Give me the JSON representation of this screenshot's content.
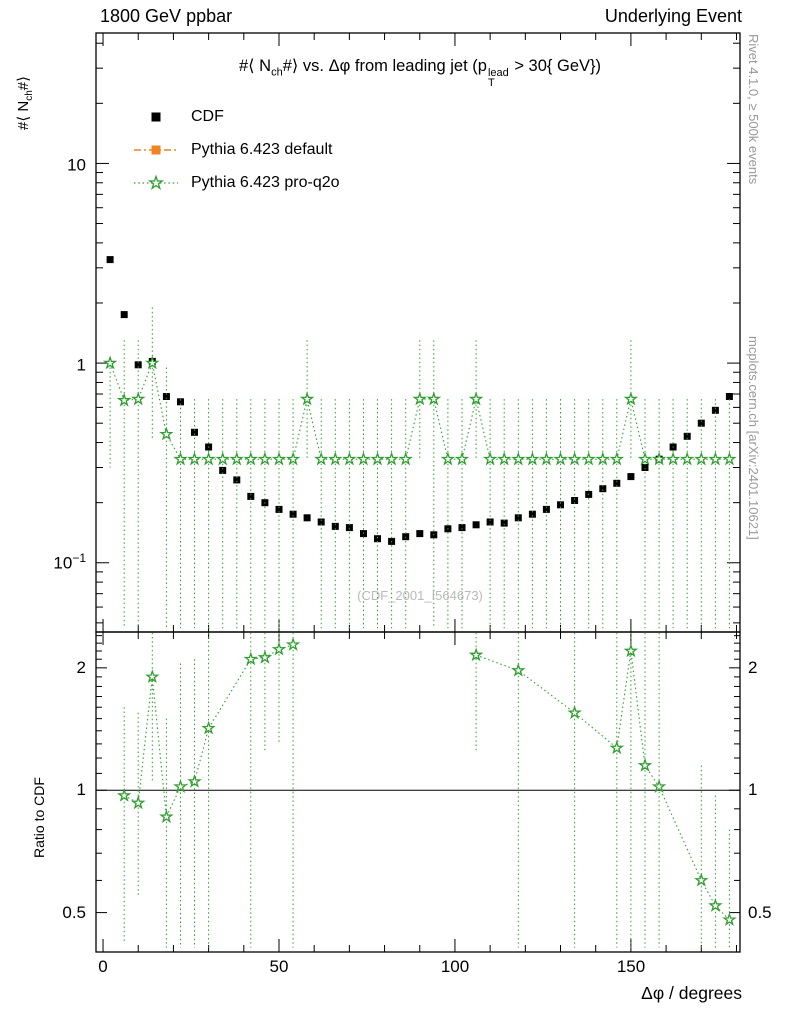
{
  "header": {
    "left": "1800 GeV ppbar",
    "right": "Underlying Event"
  },
  "side_texts": {
    "top_right": "Rivet 4.1.0, ≥ 500k events",
    "bottom_right": "mcplots.cern.ch [arXiv:2401.10621]"
  },
  "watermark": "(CDF_2001_I564673)",
  "title": {
    "part1": "#⟨ N",
    "sub1": "ch",
    "part2": "#⟩ vs. Δφ from leading jet  (p",
    "p_sup": "lead",
    "p_sub": "T",
    "part3": " > 30{ GeV})"
  },
  "axes": {
    "y_label": {
      "part1": "#⟨ N",
      "sub": "ch",
      "part2": "#⟩"
    },
    "ratio_label": "Ratio to CDF",
    "x_label": "Δφ / degrees",
    "main_y_ticks": [
      {
        "base": "10",
        "exp": "",
        "value": 10
      },
      {
        "base": "1",
        "exp": "",
        "value": 1
      },
      {
        "base": "10",
        "exp": "−1",
        "value": 0.1
      }
    ],
    "ratio_y_ticks": [
      {
        "label": "2",
        "value": 2
      },
      {
        "label": "1",
        "value": 1
      },
      {
        "label": "0.5",
        "value": 0.5
      }
    ],
    "x_ticks": [
      {
        "label": "0",
        "value": 0
      },
      {
        "label": "50",
        "value": 50
      },
      {
        "label": "100",
        "value": 100
      },
      {
        "label": "150",
        "value": 150
      }
    ]
  },
  "legend": [
    {
      "label": "CDF",
      "marker": "filled-square",
      "line": "none",
      "color": "#000000"
    },
    {
      "label": "Pythia 6.423 default",
      "marker": "filled-square",
      "line": "dashdot",
      "color": "#f28322"
    },
    {
      "label": "Pythia 6.423 pro-q2o",
      "marker": "open-star",
      "line": "dotted",
      "color": "#2f9e2f"
    }
  ],
  "chart_data": [
    {
      "type": "scatter",
      "panel": "main",
      "title": "#<N_ch#> vs. Dphi from leading jet (pT^lead > 30 GeV)",
      "xlabel": "Δφ / degrees",
      "ylabel": "#<N_ch#>",
      "xlim": [
        -2,
        181
      ],
      "ylim": [
        0.045,
        45
      ],
      "yscale": "log",
      "grid": false,
      "legend_position": "top-left",
      "series": [
        {
          "name": "CDF",
          "marker": "filled-square",
          "color": "#000000",
          "x": [
            2,
            6,
            10,
            14,
            18,
            22,
            26,
            30,
            34,
            38,
            42,
            46,
            50,
            54,
            58,
            62,
            66,
            70,
            74,
            78,
            82,
            86,
            90,
            94,
            98,
            102,
            106,
            110,
            114,
            118,
            122,
            126,
            130,
            134,
            138,
            142,
            146,
            150,
            154,
            158,
            162,
            166,
            170,
            174,
            178
          ],
          "y": [
            3.3,
            1.75,
            0.98,
            1.02,
            0.68,
            0.64,
            0.45,
            0.38,
            0.29,
            0.26,
            0.215,
            0.2,
            0.185,
            0.175,
            0.168,
            0.16,
            0.152,
            0.15,
            0.14,
            0.132,
            0.128,
            0.135,
            0.14,
            0.138,
            0.148,
            0.15,
            0.155,
            0.16,
            0.158,
            0.168,
            0.175,
            0.185,
            0.195,
            0.205,
            0.22,
            0.235,
            0.25,
            0.27,
            0.3,
            0.33,
            0.38,
            0.43,
            0.5,
            0.58,
            0.68
          ]
        },
        {
          "name": "Pythia 6.423 default",
          "marker": "filled-square",
          "line": "dashdot",
          "color": "#f28322",
          "points": []
        },
        {
          "name": "Pythia 6.423 pro-q2o",
          "marker": "open-star",
          "line": "dotted",
          "color": "#2f9e2f",
          "points_format": [
            "x",
            "y",
            "err_low",
            "err_high"
          ],
          "points": [
            [
              2,
              1.0,
              0.3,
              1.05
            ],
            [
              6,
              0.65,
              0.047,
              1.3
            ],
            [
              10,
              0.66,
              0.047,
              1.3
            ],
            [
              14,
              1.0,
              0.42,
              1.9
            ],
            [
              18,
              0.44,
              0.047,
              0.95
            ],
            [
              22,
              0.33,
              0.047,
              0.66
            ],
            [
              26,
              0.33,
              0.047,
              0.66
            ],
            [
              30,
              0.33,
              0.047,
              0.66
            ],
            [
              34,
              0.33,
              0.047,
              0.66
            ],
            [
              38,
              0.33,
              0.047,
              0.66
            ],
            [
              42,
              0.33,
              0.047,
              0.66
            ],
            [
              46,
              0.33,
              0.047,
              0.66
            ],
            [
              50,
              0.33,
              0.047,
              0.66
            ],
            [
              54,
              0.33,
              0.047,
              0.66
            ],
            [
              58,
              0.66,
              0.33,
              1.3
            ],
            [
              62,
              0.33,
              0.047,
              0.66
            ],
            [
              66,
              0.33,
              0.047,
              0.66
            ],
            [
              70,
              0.33,
              0.047,
              0.66
            ],
            [
              74,
              0.33,
              0.047,
              0.66
            ],
            [
              78,
              0.33,
              0.047,
              0.66
            ],
            [
              82,
              0.33,
              0.047,
              0.66
            ],
            [
              86,
              0.33,
              0.047,
              0.66
            ],
            [
              90,
              0.66,
              0.33,
              1.3
            ],
            [
              94,
              0.66,
              0.047,
              1.3
            ],
            [
              98,
              0.33,
              0.047,
              0.66
            ],
            [
              102,
              0.33,
              0.047,
              0.66
            ],
            [
              106,
              0.66,
              0.33,
              1.3
            ],
            [
              110,
              0.33,
              0.047,
              0.66
            ],
            [
              114,
              0.33,
              0.047,
              0.66
            ],
            [
              118,
              0.33,
              0.047,
              0.66
            ],
            [
              122,
              0.33,
              0.047,
              0.66
            ],
            [
              126,
              0.33,
              0.047,
              0.66
            ],
            [
              130,
              0.33,
              0.047,
              0.66
            ],
            [
              134,
              0.33,
              0.047,
              0.66
            ],
            [
              138,
              0.33,
              0.047,
              0.66
            ],
            [
              142,
              0.33,
              0.047,
              0.66
            ],
            [
              146,
              0.33,
              0.047,
              0.66
            ],
            [
              150,
              0.66,
              0.33,
              1.3
            ],
            [
              154,
              0.33,
              0.047,
              0.66
            ],
            [
              158,
              0.33,
              0.047,
              0.66
            ],
            [
              162,
              0.33,
              0.047,
              0.66
            ],
            [
              166,
              0.33,
              0.047,
              0.66
            ],
            [
              170,
              0.33,
              0.047,
              0.66
            ],
            [
              174,
              0.33,
              0.047,
              0.66
            ],
            [
              178,
              0.33,
              0.047,
              0.66
            ]
          ]
        }
      ]
    },
    {
      "type": "scatter",
      "panel": "ratio",
      "ylabel": "Ratio to CDF",
      "xlim": [
        -2,
        181
      ],
      "ylim": [
        0.4,
        2.45
      ],
      "yscale": "log",
      "reference_line": 1,
      "series": [
        {
          "name": "Pythia 6.423 pro-q2o / CDF",
          "marker": "open-star",
          "line": "dotted",
          "color": "#2f9e2f",
          "points_format": [
            "x",
            "ratio",
            "err_low",
            "err_high"
          ],
          "points": [
            [
              6,
              0.97,
              0.42,
              1.6
            ],
            [
              10,
              0.93,
              0.55,
              1.55
            ],
            [
              14,
              1.9,
              1.05,
              2.44
            ],
            [
              18,
              0.86,
              0.41,
              1.5
            ],
            [
              22,
              1.02,
              0.41,
              2.05
            ],
            [
              26,
              1.05,
              0.41,
              2.1
            ],
            [
              30,
              1.42,
              0.41,
              2.44
            ],
            [
              42,
              2.1,
              0.41,
              2.44
            ],
            [
              46,
              2.12,
              1.25,
              2.44
            ],
            [
              50,
              2.22,
              1.3,
              2.44
            ],
            [
              54,
              2.28,
              0.41,
              2.44
            ],
            [
              106,
              2.15,
              1.25,
              2.44
            ],
            [
              118,
              1.97,
              0.41,
              2.44
            ],
            [
              134,
              1.55,
              0.41,
              2.44
            ],
            [
              146,
              1.27,
              0.41,
              2.44
            ],
            [
              150,
              2.2,
              0.41,
              2.44
            ],
            [
              154,
              1.15,
              0.41,
              2.44
            ],
            [
              158,
              1.02,
              0.41,
              2.44
            ],
            [
              170,
              0.6,
              0.41,
              1.15
            ],
            [
              174,
              0.52,
              0.41,
              0.97
            ],
            [
              178,
              0.48,
              0.41,
              0.8
            ]
          ]
        }
      ]
    }
  ]
}
